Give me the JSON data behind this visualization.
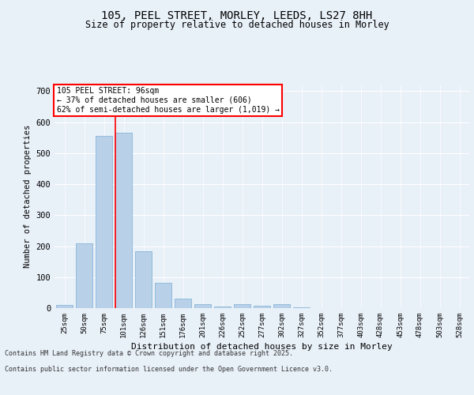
{
  "title_line1": "105, PEEL STREET, MORLEY, LEEDS, LS27 8HH",
  "title_line2": "Size of property relative to detached houses in Morley",
  "xlabel": "Distribution of detached houses by size in Morley",
  "ylabel": "Number of detached properties",
  "categories": [
    "25sqm",
    "50sqm",
    "75sqm",
    "101sqm",
    "126sqm",
    "151sqm",
    "176sqm",
    "201sqm",
    "226sqm",
    "252sqm",
    "277sqm",
    "302sqm",
    "327sqm",
    "352sqm",
    "377sqm",
    "403sqm",
    "428sqm",
    "453sqm",
    "478sqm",
    "503sqm",
    "528sqm"
  ],
  "values": [
    10,
    210,
    555,
    565,
    183,
    82,
    31,
    12,
    5,
    12,
    8,
    12,
    3,
    0,
    0,
    0,
    1,
    0,
    0,
    0,
    0
  ],
  "bar_color": "#b8d0e8",
  "bar_edge_color": "#7dafd4",
  "vline_color": "red",
  "vline_pos": 2.575,
  "annotation_text": "105 PEEL STREET: 96sqm\n← 37% of detached houses are smaller (606)\n62% of semi-detached houses are larger (1,019) →",
  "annotation_box_color": "white",
  "annotation_box_edge_color": "red",
  "ylim": [
    0,
    720
  ],
  "yticks": [
    0,
    100,
    200,
    300,
    400,
    500,
    600,
    700
  ],
  "footer_line1": "Contains HM Land Registry data © Crown copyright and database right 2025.",
  "footer_line2": "Contains public sector information licensed under the Open Government Licence v3.0.",
  "background_color": "#e8f0f8",
  "plot_background_color": "#e8f0f8"
}
